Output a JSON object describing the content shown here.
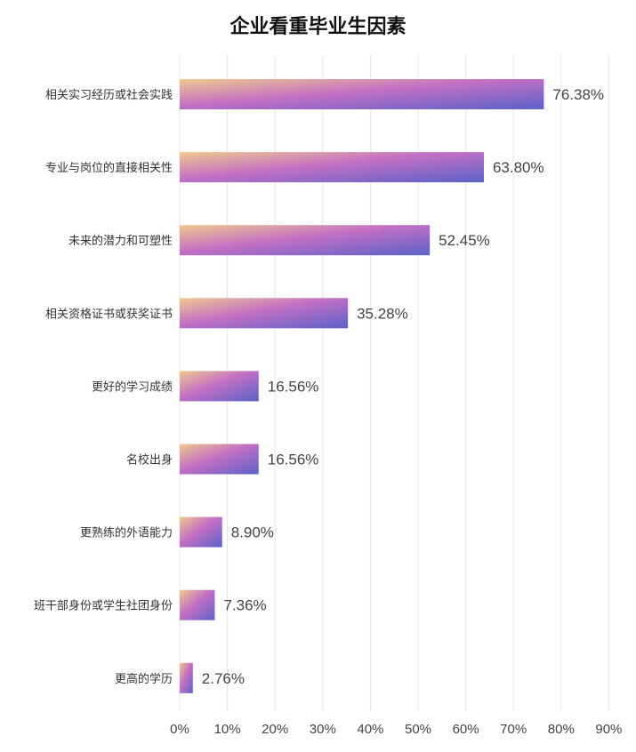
{
  "chart_data": {
    "type": "bar",
    "orientation": "horizontal",
    "title": "企业看重毕业生因素",
    "categories": [
      "相关实习经历或社会实践",
      "专业与岗位的直接相关性",
      "未来的潜力和可塑性",
      "相关资格证书或获奖证书",
      "更好的学习成绩",
      "名校出身",
      "更熟练的外语能力",
      "班干部身份或学生社团身份",
      "更高的学历"
    ],
    "values": [
      76.38,
      63.8,
      52.45,
      35.28,
      16.56,
      16.56,
      8.9,
      7.36,
      2.76
    ],
    "value_labels": [
      "76.38%",
      "63.80%",
      "52.45%",
      "35.28%",
      "16.56%",
      "16.56%",
      "8.90%",
      "7.36%",
      "2.76%"
    ],
    "xlim": [
      0,
      90
    ],
    "xticks": [
      "0%",
      "10%",
      "20%",
      "30%",
      "40%",
      "50%",
      "60%",
      "70%",
      "80%",
      "90%"
    ],
    "grid": true,
    "colors": {
      "bar_gradient": [
        "#f0c98e",
        "#c36fc4",
        "#5a63c9"
      ],
      "grid": "#e6e6e6",
      "text": "#444444"
    }
  }
}
